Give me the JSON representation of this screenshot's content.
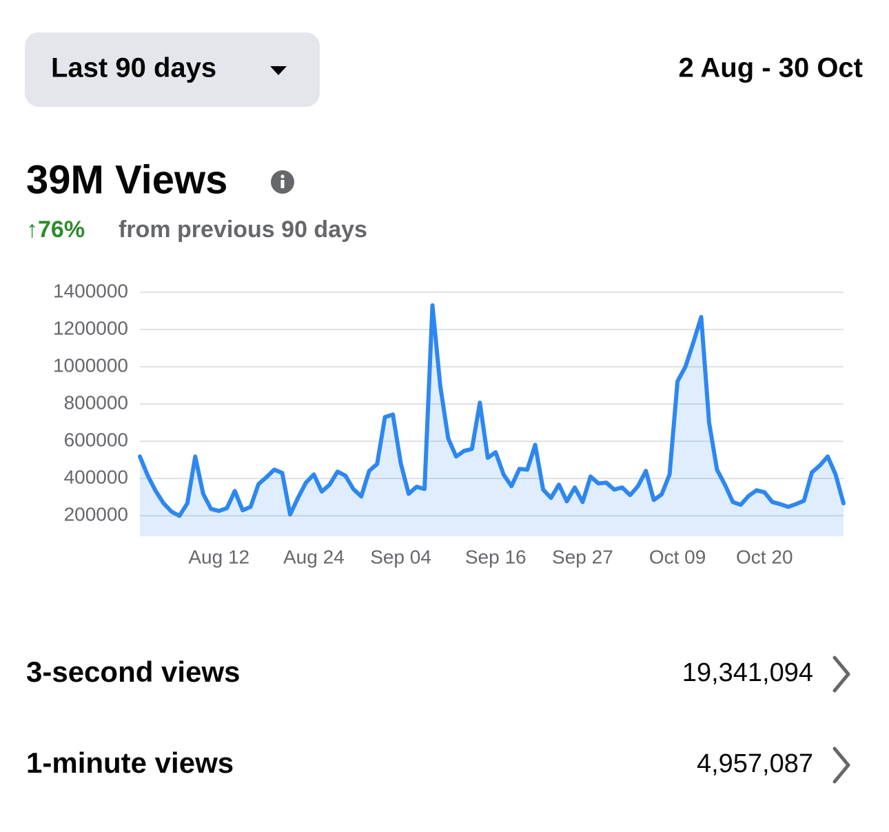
{
  "filter": {
    "label": "Last 90 days",
    "date_range": "2 Aug - 30 Oct"
  },
  "summary": {
    "title": "39M Views",
    "change": "↑76%",
    "change_text": "from previous 90 days"
  },
  "chart_data": {
    "type": "line",
    "categories": [
      null,
      null,
      null,
      null,
      null,
      null,
      null,
      null,
      null,
      null,
      "Aug 12",
      null,
      null,
      null,
      null,
      null,
      null,
      null,
      null,
      null,
      null,
      null,
      "Aug 24",
      null,
      null,
      null,
      null,
      null,
      null,
      null,
      null,
      null,
      null,
      "Sep 04",
      null,
      null,
      null,
      null,
      null,
      null,
      null,
      null,
      null,
      null,
      null,
      "Sep 16",
      null,
      null,
      null,
      null,
      null,
      null,
      null,
      null,
      null,
      null,
      "Sep 27",
      null,
      null,
      null,
      null,
      null,
      null,
      null,
      null,
      null,
      null,
      null,
      "Oct 09",
      null,
      null,
      null,
      null,
      null,
      null,
      null,
      null,
      null,
      null,
      "Oct 20",
      null,
      null,
      null,
      null,
      null,
      null,
      null,
      null,
      null,
      null
    ],
    "values": [
      518000,
      415000,
      333000,
      267000,
      222000,
      200000,
      267000,
      518000,
      318000,
      237000,
      226000,
      241000,
      333000,
      230000,
      248000,
      370000,
      407000,
      448000,
      430000,
      207000,
      296000,
      378000,
      422000,
      330000,
      367000,
      437000,
      415000,
      344000,
      304000,
      441000,
      478000,
      730000,
      744000,
      481000,
      318000,
      356000,
      344000,
      1330000,
      896000,
      615000,
      518000,
      548000,
      559000,
      807000,
      511000,
      541000,
      422000,
      359000,
      452000,
      448000,
      581000,
      341000,
      296000,
      367000,
      278000,
      352000,
      274000,
      411000,
      374000,
      378000,
      341000,
      352000,
      311000,
      359000,
      441000,
      285000,
      315000,
      422000,
      922000,
      1000000,
      1130000,
      1267000,
      700000,
      448000,
      367000,
      274000,
      259000,
      307000,
      337000,
      326000,
      274000,
      263000,
      248000,
      263000,
      281000,
      433000,
      470000,
      518000,
      422000,
      267000
    ],
    "color": "#2d87f0",
    "ylim": [
      90000,
      1400000
    ],
    "yticks": [
      200000,
      400000,
      600000,
      800000,
      1000000,
      1200000,
      1400000
    ],
    "grid": true
  },
  "metrics": [
    {
      "label": "3-second views",
      "value": "19,341,094"
    },
    {
      "label": "1-minute views",
      "value": "4,957,087"
    }
  ]
}
